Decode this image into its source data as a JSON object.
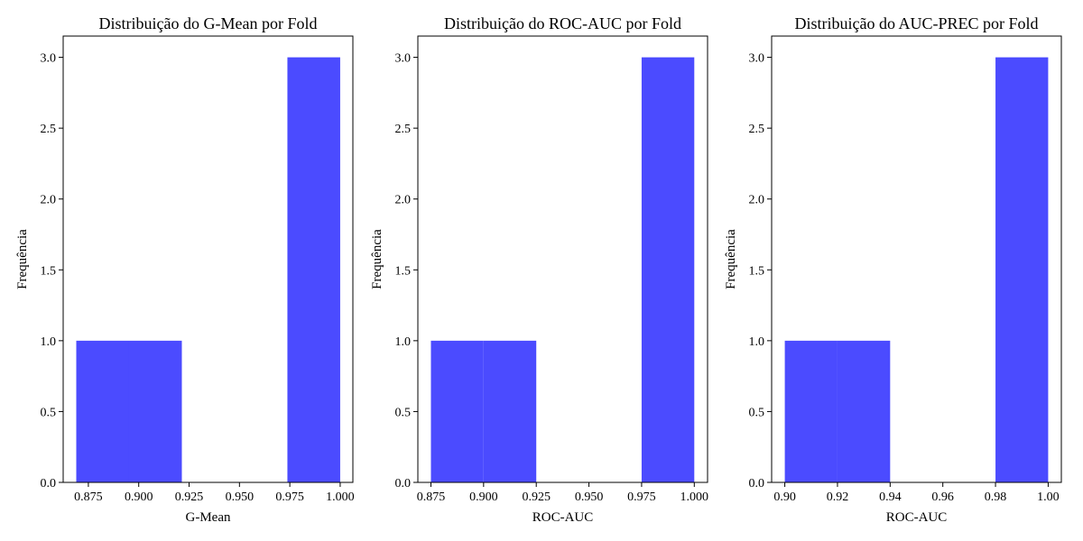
{
  "chart_data": [
    {
      "type": "bar",
      "title": "Distribuição do G-Mean por Fold",
      "xlabel": "G-Mean",
      "ylabel": "Frequência",
      "xlim": [
        0.8625,
        1.0063
      ],
      "ylim": [
        0,
        3.15
      ],
      "xticks": [
        0.875,
        0.9,
        0.925,
        0.95,
        0.975,
        1.0
      ],
      "xtick_labels": [
        "0.875",
        "0.900",
        "0.925",
        "0.950",
        "0.975",
        "1.000"
      ],
      "yticks": [
        0,
        0.5,
        1,
        1.5,
        2,
        2.5,
        3
      ],
      "ytick_labels": [
        "0.0",
        "0.5",
        "1.0",
        "1.5",
        "2.0",
        "2.5",
        "3.0"
      ],
      "bars": [
        {
          "x0": 0.869,
          "x1": 0.8952,
          "value": 1
        },
        {
          "x0": 0.8952,
          "x1": 0.9214,
          "value": 1
        },
        {
          "x0": 0.9214,
          "x1": 0.9476,
          "value": 0
        },
        {
          "x0": 0.9476,
          "x1": 0.9738,
          "value": 0
        },
        {
          "x0": 0.9738,
          "x1": 1.0,
          "value": 3
        }
      ],
      "color": "#4b4bff",
      "grid": false,
      "legend": "none"
    },
    {
      "type": "bar",
      "title": "Distribuição do ROC-AUC por Fold",
      "xlabel": "ROC-AUC",
      "ylabel": "Frequência",
      "xlim": [
        0.8688,
        1.0063
      ],
      "ylim": [
        0,
        3.15
      ],
      "xticks": [
        0.875,
        0.9,
        0.925,
        0.95,
        0.975,
        1.0
      ],
      "xtick_labels": [
        "0.875",
        "0.900",
        "0.925",
        "0.950",
        "0.975",
        "1.000"
      ],
      "yticks": [
        0,
        0.5,
        1,
        1.5,
        2,
        2.5,
        3
      ],
      "ytick_labels": [
        "0.0",
        "0.5",
        "1.0",
        "1.5",
        "2.0",
        "2.5",
        "3.0"
      ],
      "bars": [
        {
          "x0": 0.875,
          "x1": 0.9,
          "value": 1
        },
        {
          "x0": 0.9,
          "x1": 0.925,
          "value": 1
        },
        {
          "x0": 0.925,
          "x1": 0.95,
          "value": 0
        },
        {
          "x0": 0.95,
          "x1": 0.975,
          "value": 0
        },
        {
          "x0": 0.975,
          "x1": 1.0,
          "value": 3
        }
      ],
      "color": "#4b4bff",
      "grid": false,
      "legend": "none"
    },
    {
      "type": "bar",
      "title": "Distribuição do AUC-PREC por Fold",
      "xlabel": "ROC-AUC",
      "ylabel": "Frequência",
      "xlim": [
        0.895,
        1.005
      ],
      "ylim": [
        0,
        3.15
      ],
      "xticks": [
        0.9,
        0.92,
        0.94,
        0.96,
        0.98,
        1.0
      ],
      "xtick_labels": [
        "0.90",
        "0.92",
        "0.94",
        "0.96",
        "0.98",
        "1.00"
      ],
      "yticks": [
        0,
        0.5,
        1,
        1.5,
        2,
        2.5,
        3
      ],
      "ytick_labels": [
        "0.0",
        "0.5",
        "1.0",
        "1.5",
        "2.0",
        "2.5",
        "3.0"
      ],
      "bars": [
        {
          "x0": 0.9,
          "x1": 0.92,
          "value": 1
        },
        {
          "x0": 0.92,
          "x1": 0.94,
          "value": 1
        },
        {
          "x0": 0.94,
          "x1": 0.96,
          "value": 0
        },
        {
          "x0": 0.96,
          "x1": 0.98,
          "value": 0
        },
        {
          "x0": 0.98,
          "x1": 1.0,
          "value": 3
        }
      ],
      "color": "#4b4bff",
      "grid": false,
      "legend": "none"
    }
  ]
}
